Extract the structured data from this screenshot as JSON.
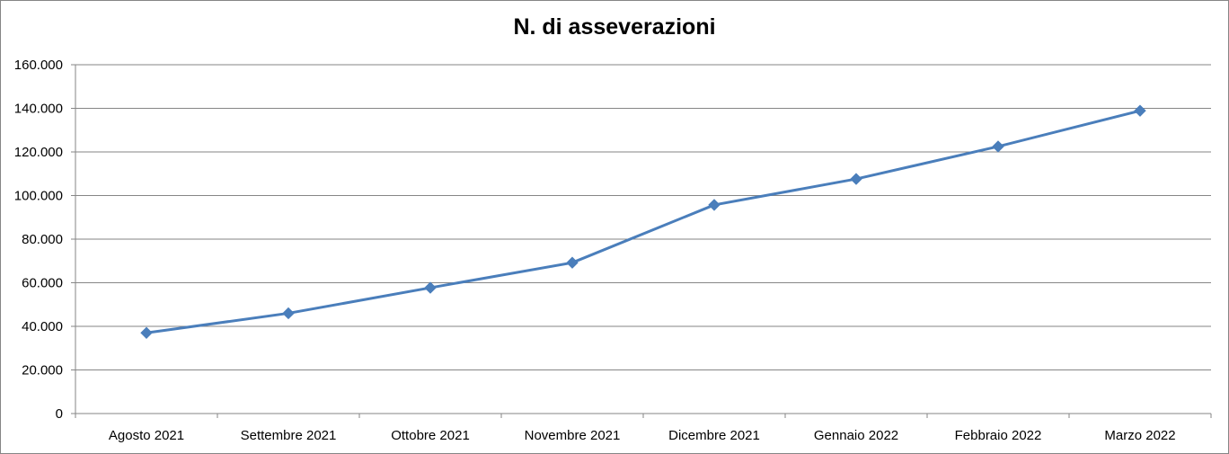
{
  "chart_data": {
    "type": "line",
    "title": "N. di asseverazioni",
    "xlabel": "",
    "ylabel": "",
    "categories": [
      "Agosto 2021",
      "Settembre 2021",
      "Ottobre 2021",
      "Novembre 2021",
      "Dicembre 2021",
      "Gennaio 2022",
      "Febbraio 2022",
      "Marzo 2022"
    ],
    "series": [
      {
        "values": [
          37000,
          46000,
          57700,
          69200,
          95700,
          107600,
          122500,
          138900
        ],
        "color": "#4a7ebb",
        "marker": "diamond"
      }
    ],
    "ylim": [
      0,
      160000
    ],
    "yticks": [
      0,
      20000,
      40000,
      60000,
      80000,
      100000,
      120000,
      140000,
      160000
    ],
    "ytick_labels": [
      "0",
      "20.000",
      "40.000",
      "60.000",
      "80.000",
      "100.000",
      "120.000",
      "140.000",
      "160.000"
    ],
    "grid": true,
    "gridline_color": "#868686",
    "legend": "none"
  }
}
